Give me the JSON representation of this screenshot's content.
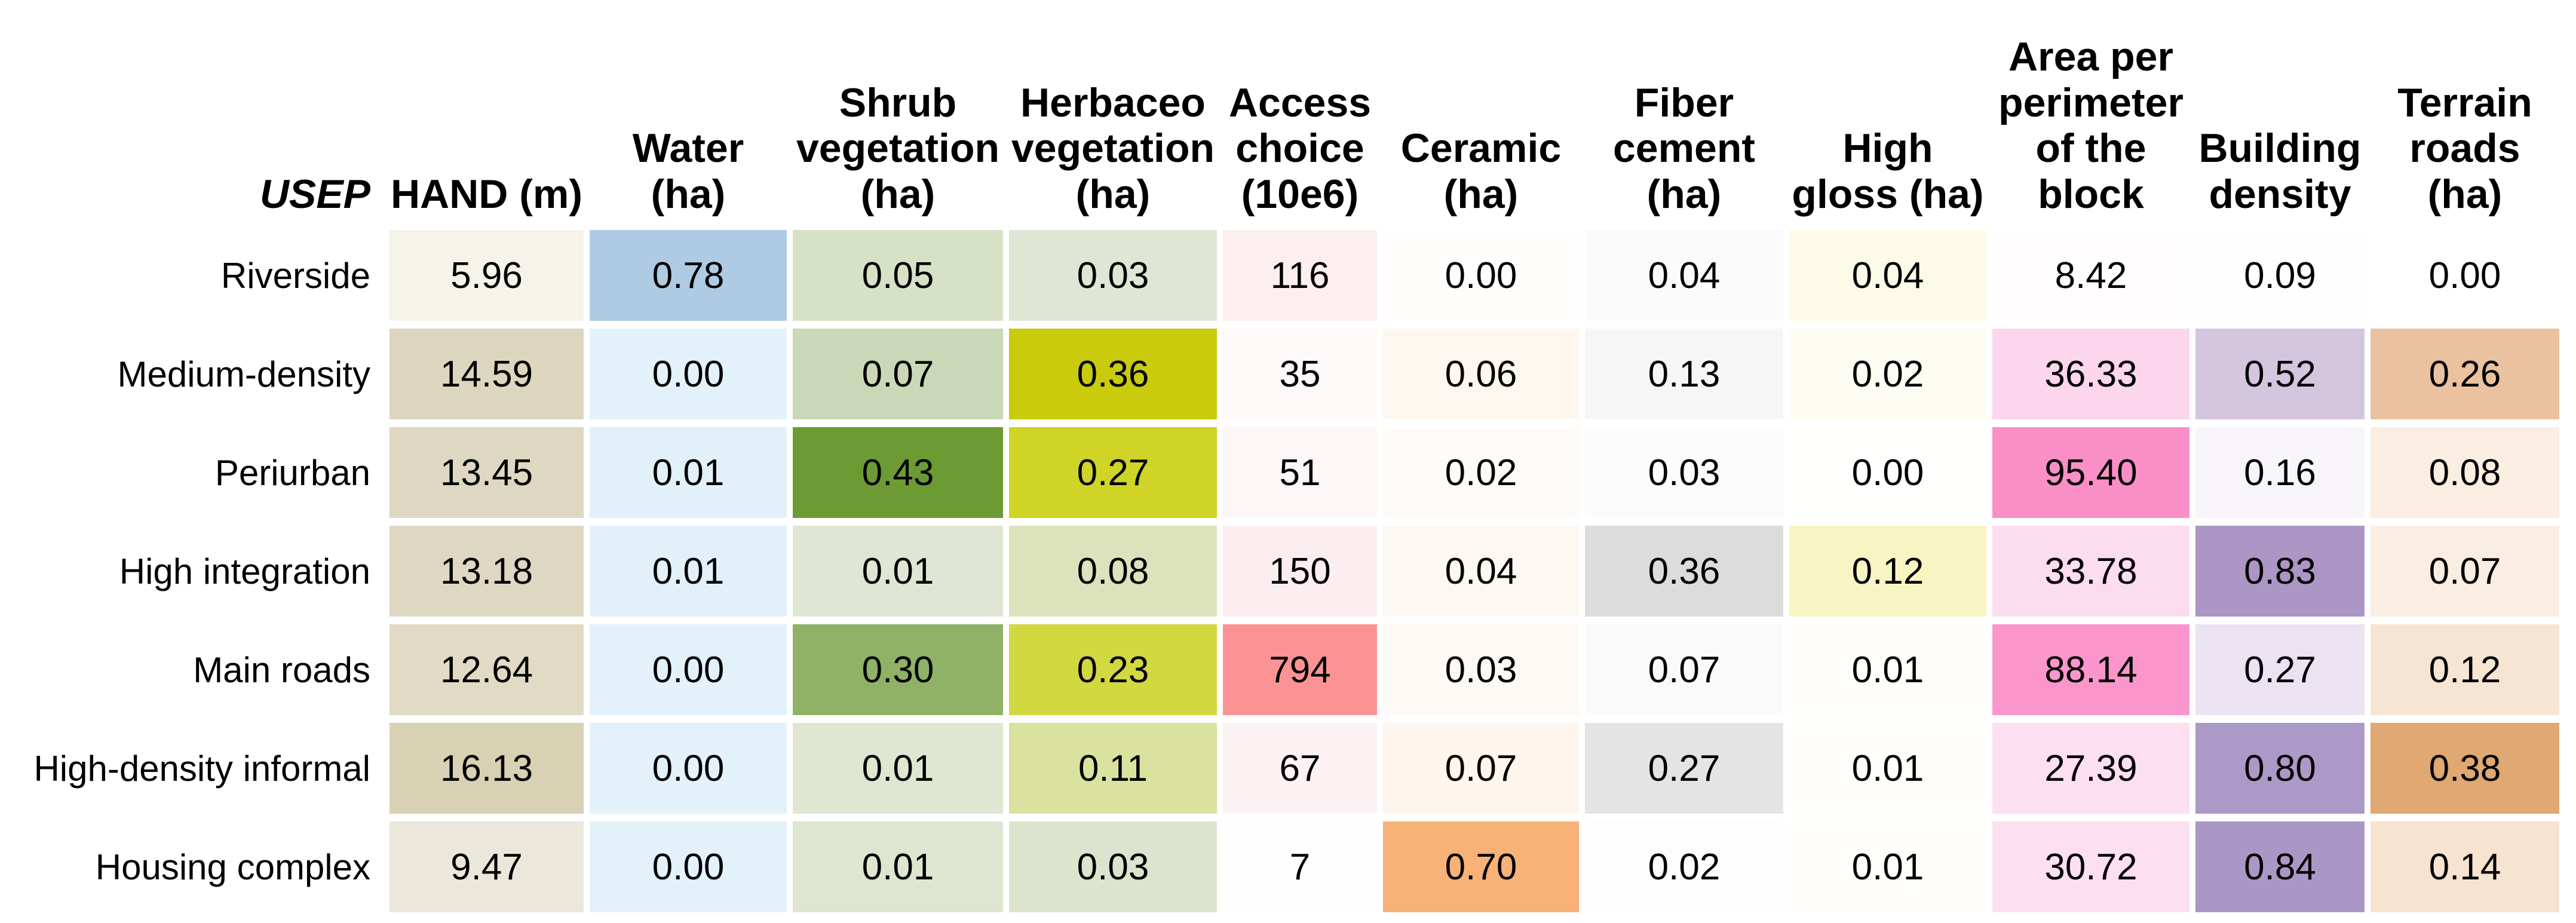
{
  "chart_data": {
    "type": "heatmap",
    "corner_label": "USEP",
    "legend_position": "none",
    "grid": "off",
    "columns": [
      {
        "id": "hand",
        "label": "HAND (m)",
        "display": "HAND (m)"
      },
      {
        "id": "water",
        "label": "Water (ha)",
        "display": "Water\n(ha)"
      },
      {
        "id": "shrub-vegetation",
        "label": "Shrub vegetation (ha)",
        "display": "Shrub\nvegetation\n(ha)"
      },
      {
        "id": "herbaceo-vegetation",
        "label": "Herbaceo vegetation (ha)",
        "display": "Herbaceo\nvegetation\n(ha)"
      },
      {
        "id": "access-choice",
        "label": "Access choice (10e6)",
        "display": "Access\nchoice\n(10e6)"
      },
      {
        "id": "ceramic",
        "label": "Ceramic (ha)",
        "display": "Ceramic\n(ha)"
      },
      {
        "id": "fiber-cement",
        "label": "Fiber cement (ha)",
        "display": "Fiber\ncement\n(ha)"
      },
      {
        "id": "high-gloss",
        "label": "High gloss (ha)",
        "display": "High\ngloss (ha)"
      },
      {
        "id": "area-per-perimeter",
        "label": "Area per perimeter of the block",
        "display": "Area per\nperimeter\nof the\nblock"
      },
      {
        "id": "building-density",
        "label": "Building density",
        "display": "Building\ndensity"
      },
      {
        "id": "terrain-roads",
        "label": "Terrain roads (ha)",
        "display": "Terrain\nroads\n(ha)"
      }
    ],
    "rows": [
      {
        "label": "Riverside",
        "values": [
          "5.96",
          "0.78",
          "0.05",
          "0.03",
          "116",
          "0.00",
          "0.04",
          "0.04",
          "8.42",
          "0.09",
          "0.00"
        ],
        "colors": [
          "#F5F3EA",
          "#AECBE3",
          "#D7E1C6",
          "#DFE6D3",
          "#FDEEEF",
          "#FFFEFD",
          "#FBFBFB",
          "#FDFBE8",
          "#FFFDFE",
          "#FEFEFF",
          "#FFFFFF"
        ]
      },
      {
        "label": "Medium-density",
        "values": [
          "14.59",
          "0.00",
          "0.07",
          "0.36",
          "35",
          "0.06",
          "0.13",
          "0.02",
          "36.33",
          "0.52",
          "0.26"
        ],
        "colors": [
          "#DDD6BF",
          "#E3F2FA",
          "#CBD8B7",
          "#C9CB0C",
          "#FEFAF9",
          "#FEF7EF",
          "#F6F6F7",
          "#FEFDF3",
          "#FBD6EC",
          "#D3C6DE",
          "#EAC2A0"
        ]
      },
      {
        "label": "Periurban",
        "values": [
          "13.45",
          "0.01",
          "0.43",
          "0.27",
          "51",
          "0.02",
          "0.03",
          "0.00",
          "95.40",
          "0.16",
          "0.08"
        ],
        "colors": [
          "#DED8C2",
          "#E2F1F9",
          "#6D9B33",
          "#CFD426",
          "#FDF6F6",
          "#FEFBF8",
          "#FCFCFC",
          "#FFFFFD",
          "#FA8FC8",
          "#F8F5FA",
          "#FAEDE1"
        ]
      },
      {
        "label": "High integration",
        "values": [
          "13.18",
          "0.01",
          "0.01",
          "0.08",
          "150",
          "0.04",
          "0.36",
          "0.12",
          "33.78",
          "0.83",
          "0.07"
        ],
        "colors": [
          "#DED8C3",
          "#E2F1F9",
          "#DFE7D4",
          "#DCE3BC",
          "#FCEEF0",
          "#FEF8F3",
          "#DCDCDD",
          "#F9F4C4",
          "#FCDCEF",
          "#AB96C5",
          "#FAEEE3"
        ]
      },
      {
        "label": "Main roads",
        "values": [
          "12.64",
          "0.00",
          "0.30",
          "0.23",
          "794",
          "0.03",
          "0.07",
          "0.01",
          "88.14",
          "0.27",
          "0.12"
        ],
        "colors": [
          "#E1DBC6",
          "#E3F2FA",
          "#8FB266",
          "#D2D840",
          "#FB9395",
          "#FEF9F5",
          "#FAFAFA",
          "#FFFEFB",
          "#FA96CC",
          "#EBE3F1",
          "#F7E5D3"
        ]
      },
      {
        "label": "High-density informal",
        "values": [
          "16.13",
          "0.00",
          "0.01",
          "0.11",
          "67",
          "0.07",
          "0.27",
          "0.01",
          "27.39",
          "0.80",
          "0.38"
        ],
        "colors": [
          "#D8D1B4",
          "#E3F2FA",
          "#DFE7D3",
          "#DAE29F",
          "#FDF2F3",
          "#FEF5EC",
          "#E4E4E4",
          "#FFFEFB",
          "#FCE0F1",
          "#AD99C7",
          "#E0A873"
        ]
      },
      {
        "label": "Housing complex",
        "values": [
          "9.47",
          "0.00",
          "0.01",
          "0.03",
          "7",
          "0.70",
          "0.02",
          "0.01",
          "30.72",
          "0.84",
          "0.14"
        ],
        "colors": [
          "#EBE8DB",
          "#E3F2FA",
          "#DEE5D0",
          "#DDE4CE",
          "#FFFEFE",
          "#F8B177",
          "#FDFDFD",
          "#FFFEFB",
          "#FCDFF0",
          "#AB97C5",
          "#F6E3D0"
        ]
      }
    ]
  }
}
